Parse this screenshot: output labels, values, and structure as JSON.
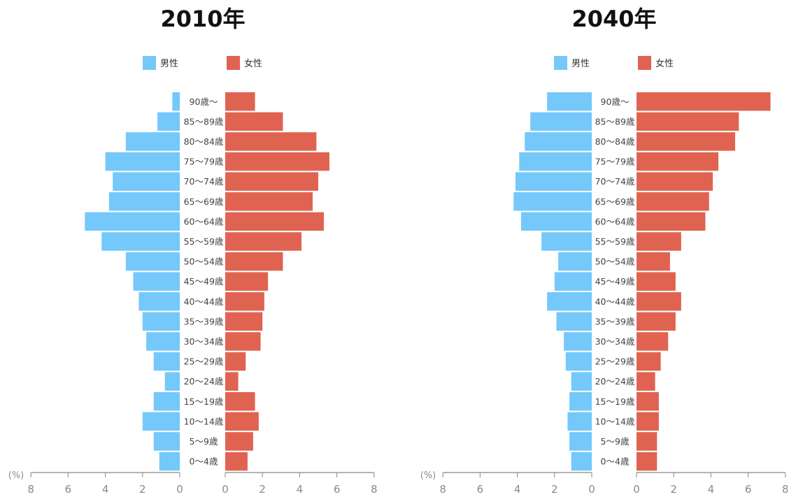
{
  "chart_data": [
    {
      "type": "bar",
      "title": "2010年",
      "legend": [
        "男性",
        "女性"
      ],
      "legend_position": "top",
      "unit": "(%)",
      "categories": [
        "90歳〜",
        "85〜89歳",
        "80〜84歳",
        "75〜79歳",
        "70〜74歳",
        "65〜69歳",
        "60〜64歳",
        "55〜59歳",
        "50〜54歳",
        "45〜49歳",
        "40〜44歳",
        "35〜39歳",
        "30〜34歳",
        "25〜29歳",
        "20〜24歳",
        "15〜19歳",
        "10〜14歳",
        "5〜9歳",
        "0〜4歳"
      ],
      "series": [
        {
          "name": "男性",
          "color": "#74c8fa",
          "values": [
            0.4,
            1.2,
            2.9,
            4.0,
            3.6,
            3.8,
            5.1,
            4.2,
            2.9,
            2.5,
            2.2,
            2.0,
            1.8,
            1.4,
            0.8,
            1.4,
            2.0,
            1.4,
            1.1
          ]
        },
        {
          "name": "女性",
          "color": "#e06352",
          "values": [
            1.6,
            3.1,
            4.9,
            5.6,
            5.0,
            4.7,
            5.3,
            4.1,
            3.1,
            2.3,
            2.1,
            2.0,
            1.9,
            1.1,
            0.7,
            1.6,
            1.8,
            1.5,
            1.2
          ]
        }
      ],
      "ticks": [
        "8",
        "6",
        "4",
        "2",
        "0",
        "0",
        "2",
        "4",
        "6",
        "8"
      ],
      "xlim": [
        0,
        8
      ],
      "grid": false
    },
    {
      "type": "bar",
      "title": "2040年",
      "legend": [
        "男性",
        "女性"
      ],
      "legend_position": "top",
      "unit": "(%)",
      "categories": [
        "90歳〜",
        "85〜89歳",
        "80〜84歳",
        "75〜79歳",
        "70〜74歳",
        "65〜69歳",
        "60〜64歳",
        "55〜59歳",
        "50〜54歳",
        "45〜49歳",
        "40〜44歳",
        "35〜39歳",
        "30〜34歳",
        "25〜29歳",
        "20〜24歳",
        "15〜19歳",
        "10〜14歳",
        "5〜9歳",
        "0〜4歳"
      ],
      "series": [
        {
          "name": "男性",
          "color": "#74c8fa",
          "values": [
            2.4,
            3.3,
            3.6,
            3.9,
            4.1,
            4.2,
            3.8,
            2.7,
            1.8,
            2.0,
            2.4,
            1.9,
            1.5,
            1.4,
            1.1,
            1.2,
            1.3,
            1.2,
            1.1
          ]
        },
        {
          "name": "女性",
          "color": "#e06352",
          "values": [
            7.2,
            5.5,
            5.3,
            4.4,
            4.1,
            3.9,
            3.7,
            2.4,
            1.8,
            2.1,
            2.4,
            2.1,
            1.7,
            1.3,
            1.0,
            1.2,
            1.2,
            1.1,
            1.1
          ]
        }
      ],
      "ticks": [
        "8",
        "6",
        "4",
        "2",
        "0",
        "0",
        "2",
        "4",
        "6",
        "8"
      ],
      "xlim": [
        0,
        8
      ],
      "grid": false
    }
  ]
}
